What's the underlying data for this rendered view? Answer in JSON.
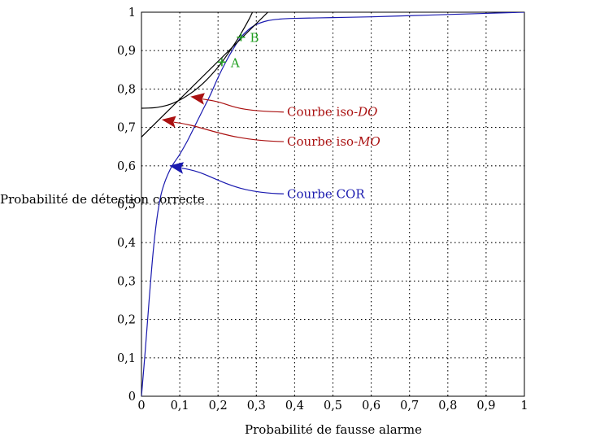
{
  "chart_data": {
    "type": "line",
    "xlabel": "Probabilité de fausse alarme",
    "ylabel": "Probabilité de détection correcte",
    "xlim": [
      0,
      1
    ],
    "ylim": [
      0,
      1
    ],
    "grid": true,
    "xticks": [
      "0",
      "0,1",
      "0,2",
      "0,3",
      "0,4",
      "0,5",
      "0,6",
      "0,7",
      "0,8",
      "0,9",
      "1"
    ],
    "yticks": [
      "0",
      "0,1",
      "0,2",
      "0,3",
      "0,4",
      "0,5",
      "0,6",
      "0,7",
      "0,8",
      "0,9",
      "1"
    ],
    "series": [
      {
        "name": "Courbe COR",
        "color": "#1a1aaf",
        "x": [
          0,
          0.01,
          0.02,
          0.03,
          0.04,
          0.05,
          0.06,
          0.07,
          0.08,
          0.09,
          0.1,
          0.12,
          0.14,
          0.16,
          0.18,
          0.2,
          0.22,
          0.24,
          0.26,
          0.28,
          0.3,
          0.33,
          0.36,
          0.4,
          0.5,
          0.6,
          0.7,
          0.8,
          0.9,
          1.0
        ],
        "y": [
          0,
          0.12,
          0.25,
          0.37,
          0.46,
          0.52,
          0.555,
          0.58,
          0.6,
          0.615,
          0.63,
          0.665,
          0.705,
          0.745,
          0.785,
          0.83,
          0.87,
          0.905,
          0.935,
          0.955,
          0.968,
          0.978,
          0.982,
          0.984,
          0.986,
          0.988,
          0.991,
          0.994,
          0.997,
          1.0
        ]
      },
      {
        "name": "Courbe iso-MO",
        "color": "#000000",
        "x": [
          0,
          0.33
        ],
        "y": [
          0.675,
          1.0
        ]
      },
      {
        "name": "Courbe iso-DO",
        "color": "#000000",
        "x": [
          0,
          0.04,
          0.08,
          0.12,
          0.16,
          0.2,
          0.23,
          0.25,
          0.27,
          0.28,
          0.29
        ],
        "y": [
          0.75,
          0.752,
          0.762,
          0.783,
          0.814,
          0.857,
          0.898,
          0.928,
          0.962,
          0.98,
          1.0
        ]
      }
    ],
    "points": [
      {
        "label": "A",
        "x": 0.21,
        "y": 0.87,
        "color": "#22a022"
      },
      {
        "label": "B",
        "x": 0.26,
        "y": 0.935,
        "color": "#22a022"
      }
    ],
    "annotations": [
      {
        "prefix": "Courbe iso-",
        "emph": "DO",
        "color": "#aa1111",
        "target_x": 0.13,
        "target_y": 0.78,
        "text_x": 0.38,
        "text_y": 0.74
      },
      {
        "prefix": "Courbe iso-",
        "emph": "MO",
        "color": "#aa1111",
        "target_x": 0.055,
        "target_y": 0.72,
        "text_x": 0.38,
        "text_y": 0.663
      },
      {
        "prefix": "Courbe ",
        "emph": "COR",
        "color": "#1a1aaf",
        "target_x": 0.075,
        "target_y": 0.6,
        "text_x": 0.38,
        "text_y": 0.527,
        "emph_upright": true
      }
    ]
  }
}
